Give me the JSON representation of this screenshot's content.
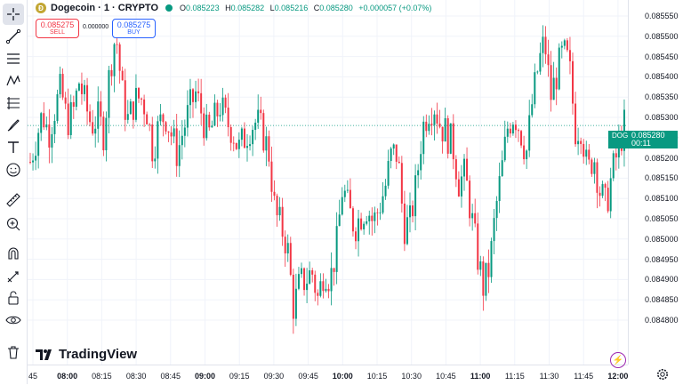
{
  "header": {
    "coin_badge": "Ð",
    "symbol_title": "Dogecoin · 1 · CRYPTO",
    "ohlc": {
      "open_label": "O",
      "open": "0.085223",
      "high_label": "H",
      "high": "0.085282",
      "low_label": "L",
      "low": "0.085216",
      "close_label": "C",
      "close": "0.085280",
      "change": "+0.000057 (+0.07%)"
    },
    "sell_price": "0.085275",
    "sell_label": "SELL",
    "spread": "0.000000",
    "buy_price": "0.085275",
    "buy_label": "BUY"
  },
  "price_tag": {
    "symbol": "DOGEUSD",
    "price": "0.085280",
    "countdown": "00:11",
    "color": "#089981"
  },
  "colors": {
    "up": "#089981",
    "down": "#f23645",
    "grid": "#f0f3fa"
  },
  "branding": {
    "logo_text": "TradingView"
  },
  "toolbar_icons": [
    "crosshair-icon",
    "trend-line-icon",
    "horizontal-lines-icon",
    "pattern-icon",
    "fib-icon",
    "brush-icon",
    "text-icon",
    "emoji-icon",
    "ruler-icon",
    "zoom-in-icon",
    "magnet-icon",
    "lock-drawing-icon",
    "unlock-icon",
    "eye-icon",
    "trash-icon"
  ],
  "chart_data": {
    "type": "candlestick",
    "y_ticks": [
      "0.085550",
      "0.085500",
      "0.085450",
      "0.085400",
      "0.085350",
      "0.085300",
      "0.085250",
      "0.085200",
      "0.085150",
      "0.085100",
      "0.085050",
      "0.085000",
      "0.084950",
      "0.084900",
      "0.084850",
      "0.084800"
    ],
    "x_ticks": [
      {
        "label": "45",
        "bold": false
      },
      {
        "label": "08:00",
        "bold": true
      },
      {
        "label": "08:15",
        "bold": false
      },
      {
        "label": "08:30",
        "bold": false
      },
      {
        "label": "08:45",
        "bold": false
      },
      {
        "label": "09:00",
        "bold": true
      },
      {
        "label": "09:15",
        "bold": false
      },
      {
        "label": "09:30",
        "bold": false
      },
      {
        "label": "09:45",
        "bold": false
      },
      {
        "label": "10:00",
        "bold": true
      },
      {
        "label": "10:15",
        "bold": false
      },
      {
        "label": "10:30",
        "bold": false
      },
      {
        "label": "10:45",
        "bold": false
      },
      {
        "label": "11:00",
        "bold": true
      },
      {
        "label": "11:15",
        "bold": false
      },
      {
        "label": "11:30",
        "bold": false
      },
      {
        "label": "11:45",
        "bold": false
      },
      {
        "label": "12:00",
        "bold": true
      }
    ],
    "ylim": [
      0.084775,
      0.085575
    ],
    "last_price": 0.08528,
    "close_path": [
      0.08519,
      0.08525,
      0.08531,
      0.08526,
      0.08532,
      0.08537,
      0.08529,
      0.08531,
      0.08539,
      0.08533,
      0.08528,
      0.0853,
      0.08526,
      0.08542,
      0.08551,
      0.08536,
      0.08529,
      0.08534,
      0.08535,
      0.08532,
      0.08522,
      0.08528,
      0.08531,
      0.08526,
      0.08521,
      0.08527,
      0.08532,
      0.08536,
      0.08531,
      0.08525,
      0.08529,
      0.08533,
      0.08529,
      0.08527,
      0.08522,
      0.08525,
      0.08528,
      0.08529,
      0.08526,
      0.08521,
      0.08506,
      0.08503,
      0.08498,
      0.08483,
      0.08489,
      0.0849,
      0.08492,
      0.08485,
      0.08493,
      0.0849,
      0.08498,
      0.08513,
      0.08507,
      0.08503,
      0.08506,
      0.08508,
      0.08504,
      0.08508,
      0.08513,
      0.08521,
      0.08521,
      0.08503,
      0.08504,
      0.08513,
      0.08527,
      0.08532,
      0.08533,
      0.08528,
      0.08526,
      0.08523,
      0.08514,
      0.08516,
      0.08506,
      0.08496,
      0.08488,
      0.08493,
      0.08507,
      0.08517,
      0.08528,
      0.08531,
      0.08527,
      0.08521,
      0.08534,
      0.08543,
      0.08549,
      0.08535,
      0.08541,
      0.08546,
      0.08543,
      0.08527,
      0.08528,
      0.08516,
      0.08521,
      0.08512,
      0.08508,
      0.08516,
      0.08522,
      0.08528
    ]
  }
}
